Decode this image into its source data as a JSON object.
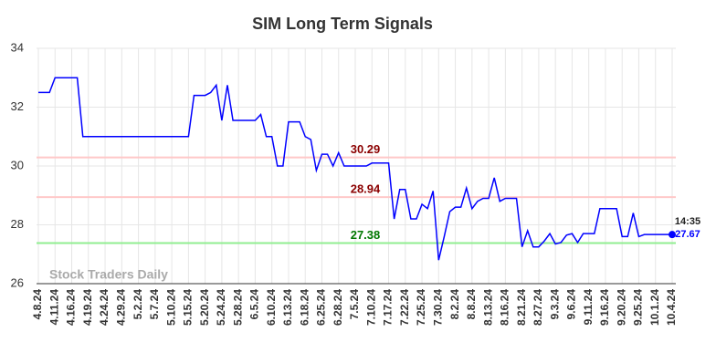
{
  "chart_data": {
    "type": "line",
    "title": "SIM Long Term Signals",
    "watermark": "Stock Traders Daily",
    "categories": [
      "4.8.24",
      null,
      null,
      "4.11.24",
      null,
      null,
      "4.16.24",
      null,
      null,
      "4.19.24",
      null,
      null,
      "4.24.24",
      null,
      null,
      "4.29.24",
      null,
      null,
      "5.2.24",
      null,
      null,
      "5.7.24",
      null,
      null,
      "5.10.24",
      null,
      null,
      "5.15.24",
      null,
      null,
      "5.20.24",
      null,
      null,
      "5.24.24",
      null,
      null,
      "5.28.24",
      null,
      null,
      "6.5.24",
      null,
      null,
      "6.10.24",
      null,
      null,
      "6.13.24",
      null,
      null,
      "6.18.24",
      null,
      null,
      "6.25.24",
      null,
      null,
      "6.28.24",
      null,
      null,
      "7.5.24",
      null,
      null,
      "7.10.24",
      null,
      null,
      "7.17.24",
      null,
      null,
      "7.22.24",
      null,
      null,
      "7.25.24",
      null,
      null,
      "7.30.24",
      null,
      null,
      "8.2.24",
      null,
      null,
      "8.8.24",
      null,
      null,
      "8.13.24",
      null,
      null,
      "8.16.24",
      null,
      null,
      "8.21.24",
      null,
      null,
      "8.27.24",
      null,
      null,
      "9.3.24",
      null,
      null,
      "9.6.24",
      null,
      null,
      "9.11.24",
      null,
      null,
      "9.16.24",
      null,
      null,
      "9.20.24",
      null,
      null,
      "9.25.24",
      null,
      null,
      "10.1.24",
      null,
      null,
      "10.4.24"
    ],
    "values": [
      32.5,
      32.5,
      32.5,
      33.0,
      33.0,
      33.0,
      33.0,
      33.0,
      31.0,
      31.0,
      31.0,
      31.0,
      31.0,
      31.0,
      31.0,
      31.0,
      31.0,
      31.0,
      31.0,
      31.0,
      31.0,
      31.0,
      31.0,
      31.0,
      31.0,
      31.0,
      31.0,
      31.0,
      32.4,
      32.4,
      32.4,
      32.5,
      32.75,
      31.55,
      32.75,
      31.55,
      31.55,
      31.55,
      31.55,
      31.55,
      31.75,
      31.0,
      31.0,
      30.0,
      30.0,
      31.5,
      31.5,
      31.5,
      31.0,
      30.9,
      29.85,
      30.4,
      30.4,
      30.0,
      30.45,
      30.0,
      30.0,
      30.0,
      30.0,
      30.0,
      30.1,
      30.1,
      30.1,
      30.1,
      28.2,
      29.2,
      29.2,
      28.2,
      28.2,
      28.7,
      28.55,
      29.15,
      26.8,
      27.6,
      28.45,
      28.6,
      28.6,
      29.25,
      28.55,
      28.8,
      28.9,
      28.9,
      29.6,
      28.8,
      28.9,
      28.9,
      28.9,
      27.25,
      27.8,
      27.25,
      27.25,
      27.45,
      27.7,
      27.35,
      27.4,
      27.65,
      27.7,
      27.4,
      27.7,
      27.7,
      27.7,
      28.55,
      28.55,
      28.55,
      28.55,
      27.6,
      27.6,
      28.4,
      27.6,
      27.67,
      27.67,
      27.67,
      27.67,
      27.67,
      27.67
    ],
    "color": "#0000ff",
    "hlines": [
      {
        "value": 30.29,
        "color": "#ffc8c8",
        "label_color": "#8b0000"
      },
      {
        "value": 28.94,
        "color": "#ffc8c8",
        "label_color": "#8b0000"
      },
      {
        "value": 27.38,
        "color": "#90ee90",
        "label_color": "#007700"
      }
    ],
    "last_time": "14:35",
    "ylim": [
      26,
      34
    ],
    "yticks": [
      26,
      28,
      30,
      32,
      34
    ],
    "grid": true
  }
}
